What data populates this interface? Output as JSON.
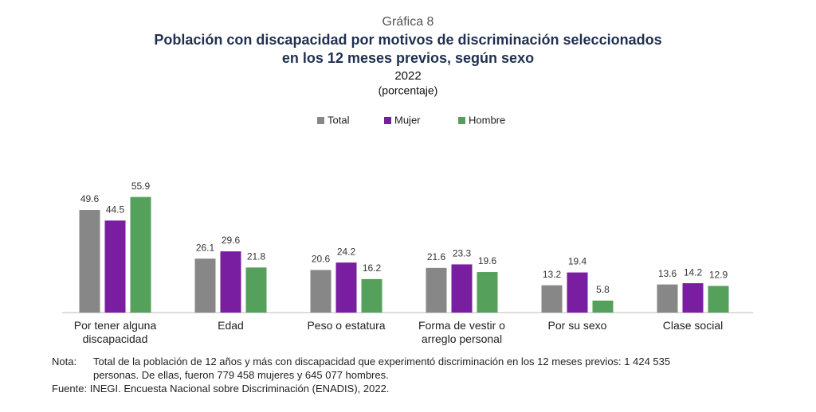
{
  "chart_data": {
    "type": "bar",
    "kicker": "Gráfica 8",
    "title": [
      "Población con discapacidad por motivos de discriminación seleccionados",
      "en los 12 meses previos, según sexo"
    ],
    "subtitle": "2022",
    "unit": "(porcentaje)",
    "categories": [
      "Por tener alguna discapacidad",
      "Edad",
      "Peso o estatura",
      "Forma de vestir o arreglo personal",
      "Por su sexo",
      "Clase social"
    ],
    "series": [
      {
        "name": "Total",
        "color": "#878787",
        "values": [
          49.6,
          26.1,
          20.6,
          21.6,
          13.2,
          13.6
        ]
      },
      {
        "name": "Mujer",
        "color": "#7a1ea1",
        "values": [
          44.5,
          29.6,
          24.2,
          23.3,
          19.4,
          14.2
        ]
      },
      {
        "name": "Hombre",
        "color": "#55a05a",
        "values": [
          55.9,
          21.8,
          16.2,
          19.6,
          5.8,
          12.9
        ]
      }
    ],
    "legend": "top"
  },
  "notes": {
    "note_label": "Nota:",
    "note_text": "Total de la población de 12 años y más con discapacidad que experimentó discriminación en los 12 meses previos: 1 424 535 personas. De ellas, fueron 779 458 mujeres y 645 077 hombres.",
    "source_label": "Fuente:",
    "source_text": "INEGI. Encuesta Nacional sobre Discriminación (ENADIS), 2022."
  }
}
